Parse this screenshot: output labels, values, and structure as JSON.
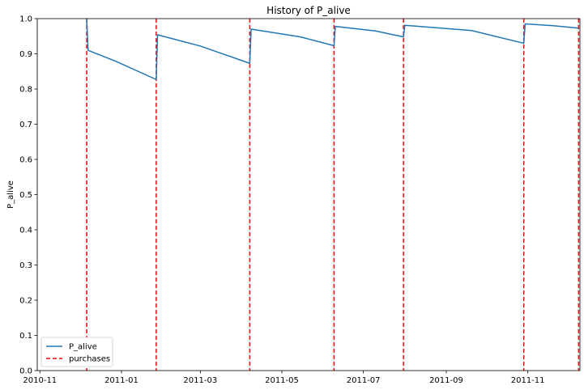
{
  "chart_data": {
    "type": "line",
    "title": "History of P_alive",
    "xlabel": "",
    "ylabel": "P_alive",
    "xlim": [
      "2010-10-30",
      "2011-12-10"
    ],
    "ylim": [
      0.0,
      1.0
    ],
    "yticks": [
      0.0,
      0.1,
      0.2,
      0.3,
      0.4,
      0.5,
      0.6,
      0.7,
      0.8,
      0.9,
      1.0
    ],
    "ytick_labels": [
      "0.0",
      "0.1",
      "0.2",
      "0.3",
      "0.4",
      "0.5",
      "0.6",
      "0.7",
      "0.8",
      "0.9",
      "1.0"
    ],
    "xticks": [
      "2010-11-01",
      "2011-01-01",
      "2011-03-01",
      "2011-05-01",
      "2011-07-01",
      "2011-09-01",
      "2011-11-01"
    ],
    "xtick_labels": [
      "2010-11",
      "2011-01",
      "2011-03",
      "2011-05",
      "2011-07",
      "2011-09",
      "2011-11"
    ],
    "grid": false,
    "legend_position": "lower-left",
    "series": [
      {
        "name": "P_alive",
        "color": "#1f77b4",
        "style": "solid",
        "points": [
          [
            "2010-12-06",
            1.0
          ],
          [
            "2010-12-07",
            0.91
          ],
          [
            "2010-12-27",
            0.88
          ],
          [
            "2011-01-27",
            0.827
          ],
          [
            "2011-01-28",
            0.954
          ],
          [
            "2011-03-01",
            0.922
          ],
          [
            "2011-04-07",
            0.873
          ],
          [
            "2011-04-08",
            0.97
          ],
          [
            "2011-05-15",
            0.948
          ],
          [
            "2011-06-09",
            0.923
          ],
          [
            "2011-06-10",
            0.978
          ],
          [
            "2011-07-10",
            0.965
          ],
          [
            "2011-07-31",
            0.948
          ],
          [
            "2011-08-01",
            0.981
          ],
          [
            "2011-09-20",
            0.966
          ],
          [
            "2011-10-29",
            0.93
          ],
          [
            "2011-10-30",
            0.985
          ],
          [
            "2011-11-20",
            0.98
          ],
          [
            "2011-12-09",
            0.973
          ]
        ]
      },
      {
        "name": "purchases",
        "color": "#ff0000",
        "style": "dashed",
        "vlines": [
          "2010-12-06",
          "2011-01-27",
          "2011-04-07",
          "2011-06-09",
          "2011-07-31",
          "2011-10-29",
          "2011-12-09"
        ]
      }
    ]
  }
}
